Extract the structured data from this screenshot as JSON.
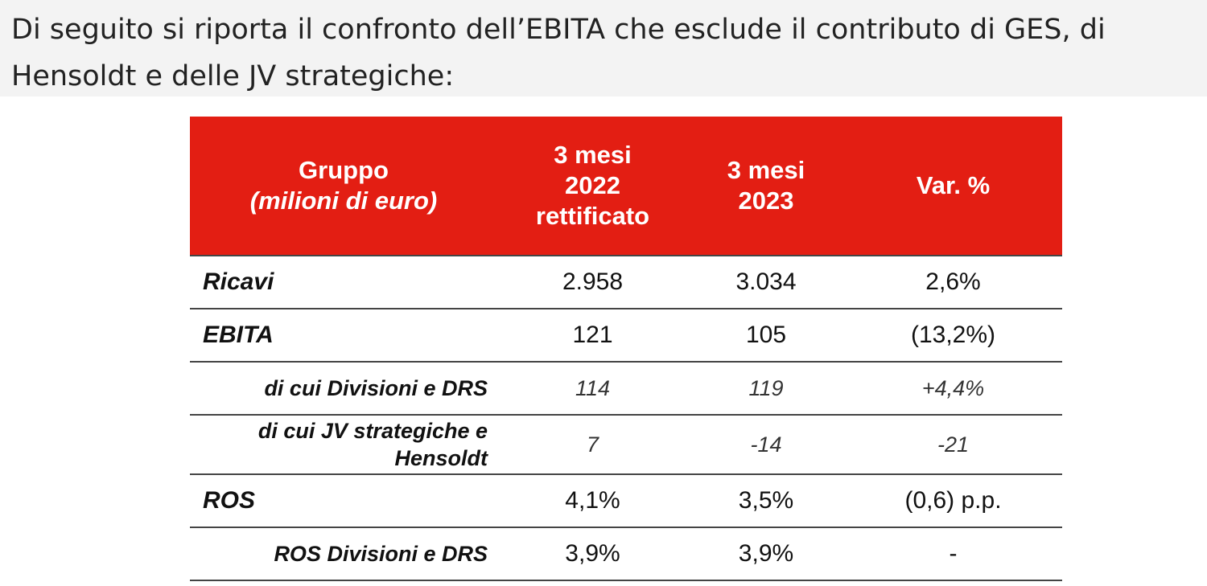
{
  "intro_text": "Di seguito si riporta il confronto dell’EBITA che esclude il contributo di GES, di\nHensoldt e delle JV strategiche:",
  "table": {
    "header": {
      "col1_line1": "Gruppo",
      "col1_line2": "(milioni di euro)",
      "col2_line1": "3 mesi",
      "col2_line2": "2022",
      "col2_line3": "rettificato",
      "col3_line1": "3 mesi",
      "col3_line2": "2023",
      "col4": "Var. %"
    },
    "rows": [
      {
        "label": "Ricavi",
        "v2022": "2.958",
        "v2023": "3.034",
        "var": "2,6%"
      },
      {
        "label": "EBITA",
        "v2022": "121",
        "v2023": "105",
        "var": "(13,2%)"
      },
      {
        "label": "di cui Divisioni e DRS",
        "v2022": "114",
        "v2023": "119",
        "var": "+4,4%"
      },
      {
        "label_line1": "di cui JV strategiche e",
        "label_line2": "Hensoldt",
        "v2022": "7",
        "v2023": "-14",
        "var": "-21"
      },
      {
        "label": "ROS",
        "v2022": "4,1%",
        "v2023": "3,5%",
        "var": "(0,6) p.p."
      },
      {
        "label": "ROS Divisioni e DRS",
        "v2022": "3,9%",
        "v2023": "3,9%",
        "var": "-"
      }
    ]
  },
  "colors": {
    "header_bg": "#e31e13",
    "header_text": "#ffffff",
    "intro_bg": "#f3f3f3"
  }
}
